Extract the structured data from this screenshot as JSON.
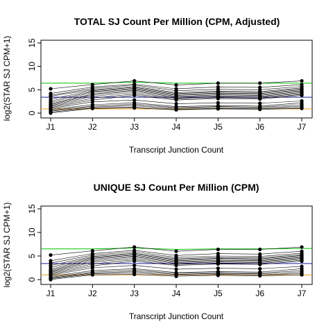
{
  "chart_data": [
    {
      "type": "line",
      "title": "TOTAL SJ Count Per Million (CPM, Adjusted)",
      "xlabel": "Transcript Junction Count",
      "ylabel": "log2(STAR SJ CPM+1)",
      "categories": [
        "J1",
        "J2",
        "J3",
        "J4",
        "J5",
        "J6",
        "J7"
      ],
      "ylim": [
        0,
        15
      ],
      "yticks": [
        0,
        5,
        10,
        15
      ],
      "grid": false,
      "reference_lines": [
        {
          "color": "#00c000",
          "values": [
            6.4,
            6.4,
            6.6,
            6.4,
            6.4,
            6.4,
            6.4
          ]
        },
        {
          "color": "#1a1aa0",
          "values": [
            3.4,
            3.4,
            3.4,
            3.4,
            3.4,
            3.4,
            3.4
          ]
        },
        {
          "color": "#e8a020",
          "values": [
            0.9,
            0.9,
            0.9,
            0.9,
            0.9,
            0.9,
            0.9
          ]
        }
      ],
      "series": [
        {
          "values": [
            5.2,
            6.1,
            6.9,
            6.0,
            6.4,
            6.4,
            6.9
          ]
        },
        {
          "values": [
            4.2,
            5.6,
            6.2,
            5.2,
            5.6,
            5.5,
            6.1
          ]
        },
        {
          "values": [
            3.8,
            5.3,
            6.0,
            4.8,
            5.1,
            5.0,
            5.7
          ]
        },
        {
          "values": [
            3.6,
            5.0,
            5.7,
            4.4,
            4.7,
            4.6,
            5.4
          ]
        },
        {
          "values": [
            3.0,
            4.8,
            5.5,
            4.2,
            4.5,
            4.4,
            5.2
          ]
        },
        {
          "values": [
            2.6,
            4.6,
            5.3,
            4.0,
            4.3,
            4.2,
            5.0
          ]
        },
        {
          "values": [
            2.3,
            4.4,
            5.1,
            3.8,
            4.1,
            4.0,
            4.8
          ]
        },
        {
          "values": [
            2.0,
            4.1,
            4.9,
            3.6,
            3.9,
            3.8,
            4.6
          ]
        },
        {
          "values": [
            1.8,
            3.9,
            4.7,
            3.4,
            3.7,
            3.6,
            4.4
          ]
        },
        {
          "values": [
            1.6,
            3.6,
            4.4,
            3.2,
            3.5,
            3.4,
            4.2
          ]
        },
        {
          "values": [
            1.4,
            3.2,
            4.1,
            3.0,
            3.3,
            3.2,
            4.0
          ]
        },
        {
          "values": [
            1.2,
            2.8,
            3.8,
            2.8,
            3.1,
            3.0,
            3.8
          ]
        },
        {
          "values": [
            1.0,
            2.4,
            2.8,
            2.0,
            2.2,
            2.1,
            2.6
          ]
        },
        {
          "values": [
            0.8,
            1.8,
            2.2,
            1.4,
            1.6,
            1.5,
            2.2
          ]
        },
        {
          "values": [
            0.6,
            1.5,
            1.9,
            1.2,
            1.4,
            1.3,
            1.8
          ]
        },
        {
          "values": [
            0.4,
            1.3,
            1.6,
            1.0,
            1.2,
            1.1,
            1.5
          ]
        },
        {
          "values": [
            0.2,
            1.1,
            1.3,
            0.8,
            1.0,
            0.9,
            1.2
          ]
        },
        {
          "values": [
            0.0,
            1.0,
            1.1,
            0.7,
            0.9,
            0.8,
            1.0
          ]
        }
      ]
    },
    {
      "type": "line",
      "title": "UNIQUE SJ Count Per Million (CPM)",
      "xlabel": "Transcript Junction Count",
      "ylabel": "log2(STAR SJ CPM+1)",
      "categories": [
        "J1",
        "J2",
        "J3",
        "J4",
        "J5",
        "J6",
        "J7"
      ],
      "ylim": [
        0,
        15
      ],
      "yticks": [
        0,
        5,
        10,
        15
      ],
      "grid": false,
      "reference_lines": [
        {
          "color": "#00c000",
          "values": [
            6.5,
            6.5,
            6.7,
            6.4,
            6.5,
            6.5,
            6.6
          ]
        },
        {
          "color": "#1a1aa0",
          "values": [
            3.4,
            3.4,
            3.4,
            3.4,
            3.4,
            3.4,
            3.4
          ]
        },
        {
          "color": "#e8a020",
          "values": [
            1.0,
            1.0,
            1.0,
            1.0,
            1.0,
            1.0,
            1.0
          ]
        }
      ],
      "series": [
        {
          "values": [
            5.2,
            6.1,
            6.9,
            6.0,
            6.4,
            6.4,
            6.9
          ]
        },
        {
          "values": [
            4.0,
            5.5,
            6.2,
            5.1,
            5.5,
            5.4,
            6.0
          ]
        },
        {
          "values": [
            3.5,
            5.2,
            5.9,
            4.7,
            5.0,
            4.9,
            5.6
          ]
        },
        {
          "values": [
            3.0,
            4.9,
            5.6,
            4.4,
            4.7,
            4.6,
            5.3
          ]
        },
        {
          "values": [
            2.6,
            4.7,
            5.4,
            4.2,
            4.5,
            4.4,
            5.1
          ]
        },
        {
          "values": [
            2.2,
            4.5,
            5.2,
            4.0,
            4.3,
            4.2,
            4.9
          ]
        },
        {
          "values": [
            1.9,
            4.3,
            5.0,
            3.8,
            4.1,
            4.0,
            4.7
          ]
        },
        {
          "values": [
            1.7,
            4.0,
            4.8,
            3.6,
            3.9,
            3.8,
            4.5
          ]
        },
        {
          "values": [
            1.5,
            3.7,
            4.5,
            3.4,
            3.7,
            3.6,
            4.3
          ]
        },
        {
          "values": [
            1.3,
            3.3,
            4.2,
            3.2,
            3.5,
            3.4,
            4.1
          ]
        },
        {
          "values": [
            1.1,
            2.9,
            3.9,
            3.0,
            3.3,
            3.2,
            3.9
          ]
        },
        {
          "values": [
            0.9,
            2.5,
            3.0,
            2.2,
            2.4,
            2.3,
            2.8
          ]
        },
        {
          "values": [
            0.7,
            1.9,
            2.3,
            1.5,
            1.7,
            1.6,
            2.3
          ]
        },
        {
          "values": [
            0.5,
            1.6,
            2.0,
            1.3,
            1.5,
            1.4,
            1.9
          ]
        },
        {
          "values": [
            0.3,
            1.4,
            1.7,
            1.1,
            1.3,
            1.2,
            1.6
          ]
        },
        {
          "values": [
            0.2,
            1.2,
            1.4,
            0.9,
            1.1,
            1.0,
            1.3
          ]
        },
        {
          "values": [
            0.0,
            1.0,
            1.1,
            0.7,
            0.9,
            0.8,
            1.0
          ]
        }
      ]
    }
  ]
}
